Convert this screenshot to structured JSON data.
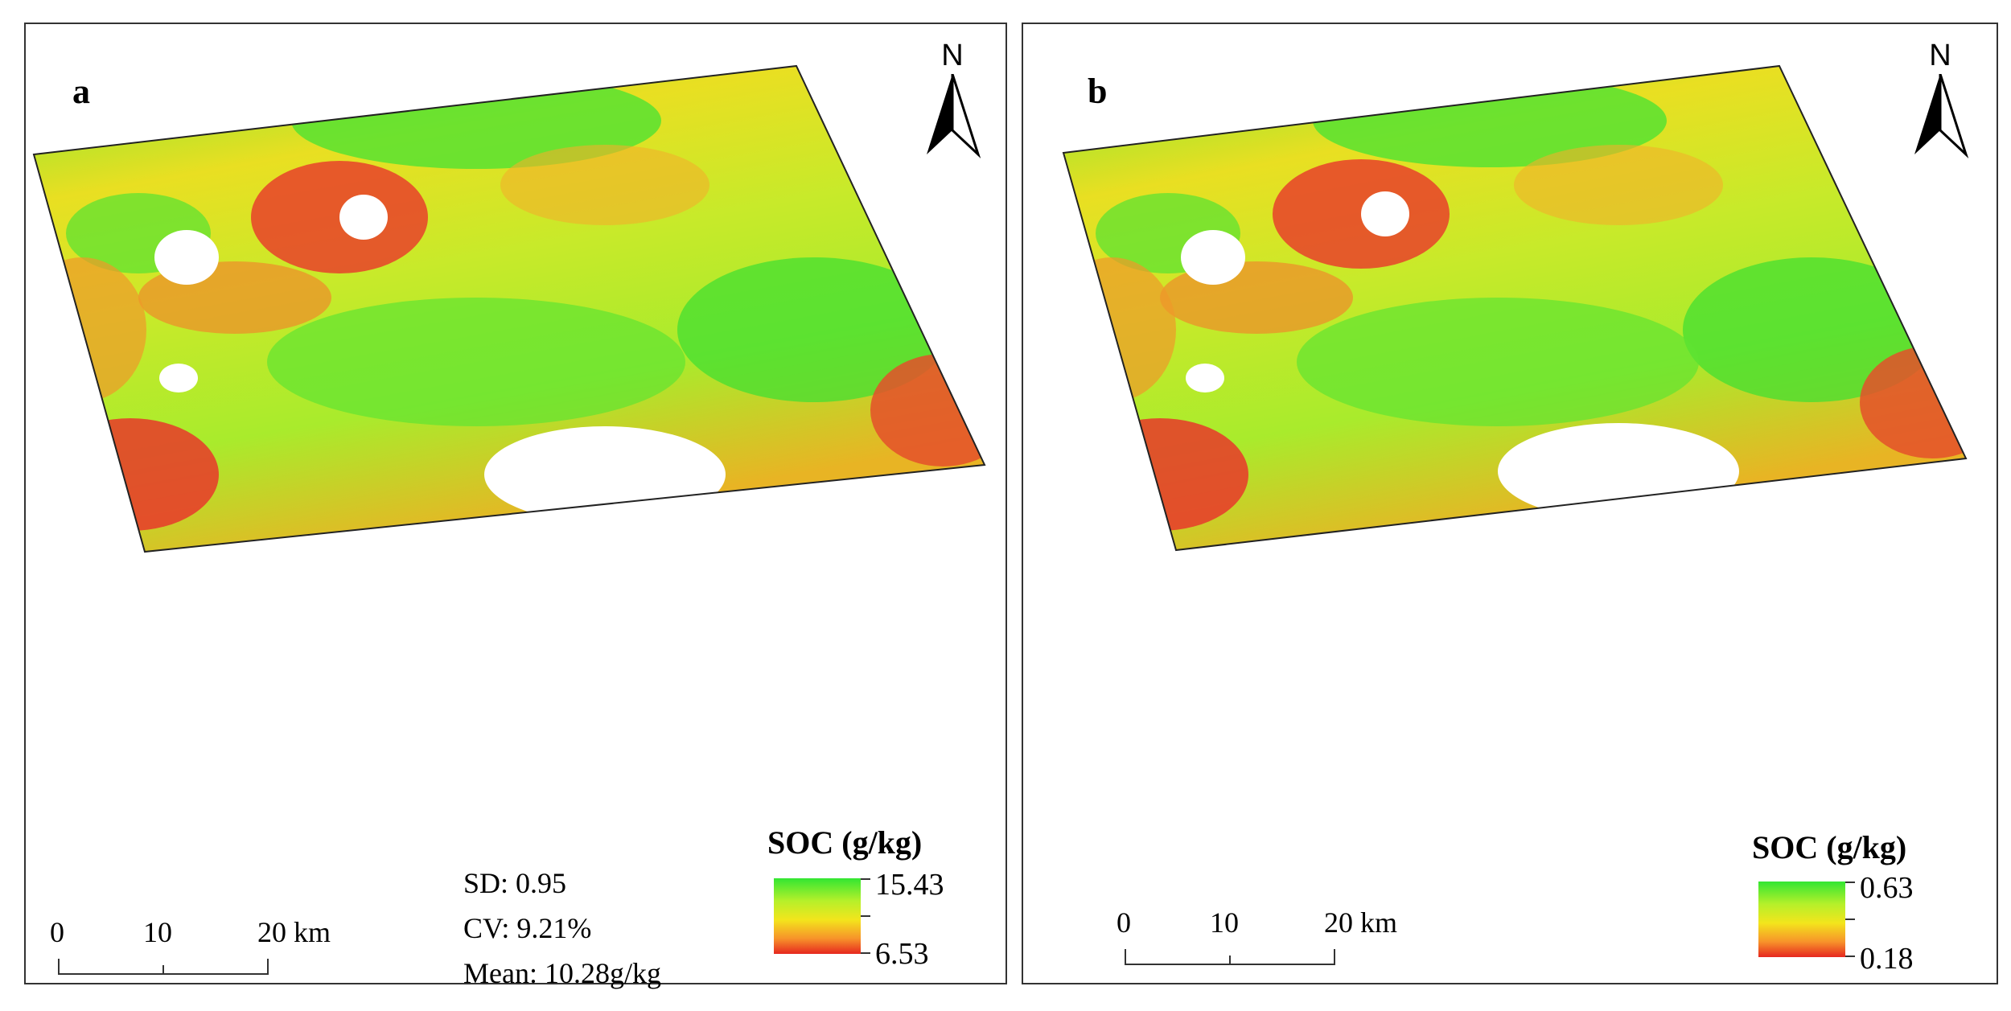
{
  "panels": [
    {
      "label": "a",
      "north_letter": "N",
      "legend": {
        "title": "SOC (g/kg)",
        "max": "15.43",
        "min": "6.53"
      },
      "stats": {
        "sd": "SD: 0.95",
        "cv": "CV: 9.21%",
        "mean": "Mean: 10.28g/kg"
      },
      "scale": {
        "t0": "0",
        "t1": "10",
        "t2": "20 km"
      }
    },
    {
      "label": "b",
      "north_letter": "N",
      "legend": {
        "title": "SOC (g/kg)",
        "max": "0.63",
        "min": "0.18"
      },
      "scale": {
        "t0": "0",
        "t1": "10",
        "t2": "20 km"
      }
    }
  ],
  "colors": {
    "high": "#32e632",
    "mid_high": "#b6f02a",
    "mid": "#f3e51c",
    "mid_low": "#f7922a",
    "low": "#e6271f",
    "frame": "#333333"
  }
}
